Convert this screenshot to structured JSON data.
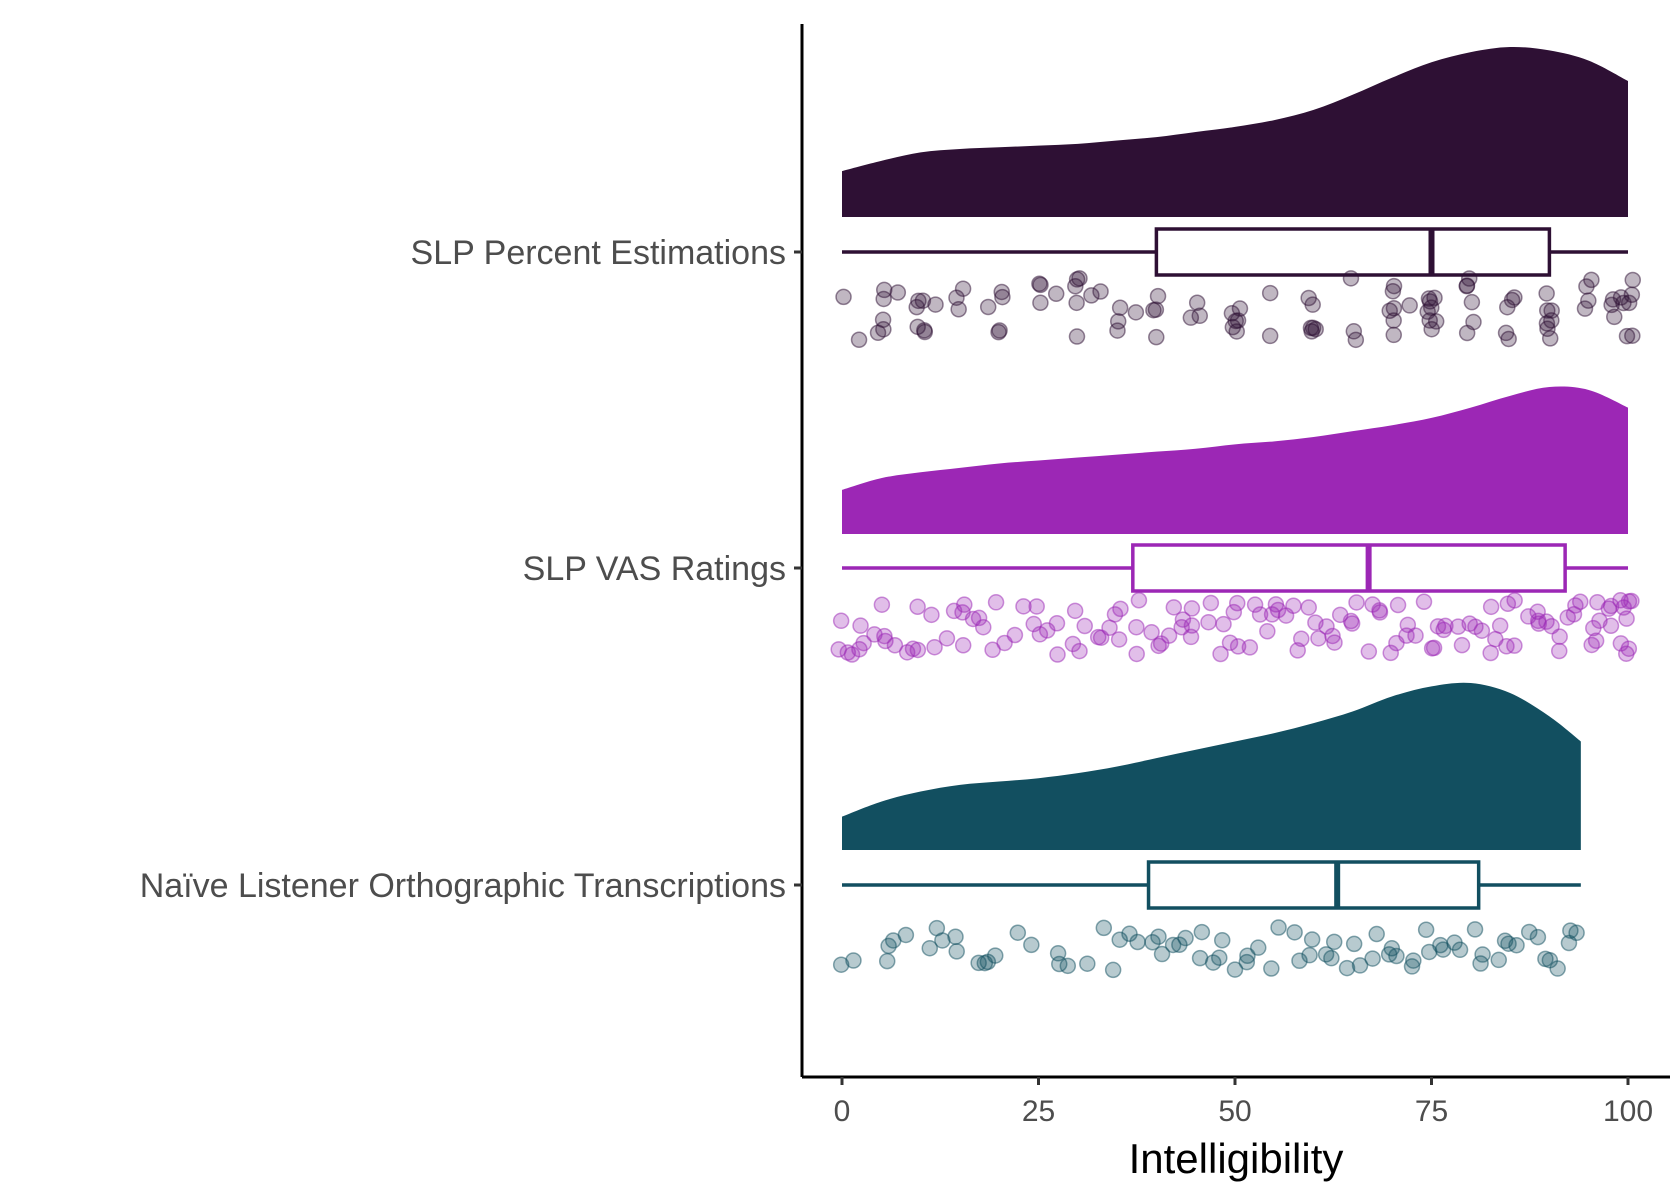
{
  "chart_data": {
    "type": "raincloud",
    "title": "",
    "xlabel": "Intelligibility",
    "ylabel": "",
    "xlim": [
      -5,
      105
    ],
    "x_ticks": [
      0,
      25,
      50,
      75,
      100
    ],
    "x_tick_labels": [
      "0",
      "25",
      "50",
      "75",
      "100"
    ],
    "grid": false,
    "legend": "none",
    "categories": [
      "SLP Percent Estimations",
      "SLP VAS Ratings",
      "Naïve Listener Orthographic Transcriptions"
    ],
    "series": [
      {
        "name": "SLP Percent Estimations",
        "color": "#2e1034",
        "box": {
          "min": 0,
          "q1": 40,
          "median": 75,
          "q3": 90,
          "max": 100
        },
        "density": {
          "x": [
            0,
            5,
            10,
            15,
            20,
            25,
            30,
            35,
            40,
            45,
            50,
            55,
            60,
            65,
            70,
            75,
            80,
            85,
            90,
            95,
            100
          ],
          "y": [
            0.27,
            0.33,
            0.38,
            0.4,
            0.41,
            0.42,
            0.43,
            0.45,
            0.47,
            0.5,
            0.53,
            0.57,
            0.63,
            0.72,
            0.82,
            0.91,
            0.97,
            1.0,
            0.98,
            0.92,
            0.8
          ]
        },
        "points": [
          0,
          2,
          5,
          5,
          5,
          5,
          5,
          7,
          10,
          10,
          10,
          10,
          10,
          10,
          12,
          15,
          15,
          15,
          18,
          20,
          20,
          20,
          20,
          25,
          25,
          25,
          27,
          30,
          30,
          30,
          30,
          30,
          32,
          33,
          35,
          35,
          35,
          38,
          40,
          40,
          40,
          40,
          45,
          45,
          45,
          50,
          50,
          50,
          50,
          50,
          50,
          55,
          55,
          60,
          60,
          60,
          60,
          60,
          60,
          65,
          65,
          65,
          70,
          70,
          70,
          70,
          70,
          70,
          72,
          75,
          75,
          75,
          75,
          75,
          75,
          75,
          75,
          80,
          80,
          80,
          80,
          80,
          80,
          85,
          85,
          85,
          85,
          85,
          90,
          90,
          90,
          90,
          90,
          90,
          90,
          95,
          95,
          95,
          95,
          98,
          98,
          98,
          99,
          100,
          100,
          100,
          100,
          100,
          100
        ]
      },
      {
        "name": "SLP VAS Ratings",
        "color": "#9c27b5",
        "box": {
          "min": 0,
          "q1": 37,
          "median": 67,
          "q3": 92,
          "max": 100
        },
        "density": {
          "x": [
            0,
            5,
            10,
            15,
            20,
            25,
            30,
            35,
            40,
            45,
            50,
            55,
            60,
            65,
            70,
            75,
            80,
            85,
            90,
            95,
            100
          ],
          "y": [
            0.3,
            0.38,
            0.42,
            0.45,
            0.48,
            0.5,
            0.52,
            0.54,
            0.56,
            0.58,
            0.61,
            0.63,
            0.66,
            0.7,
            0.74,
            0.79,
            0.86,
            0.94,
            1.0,
            0.98,
            0.86
          ]
        },
        "points": [
          0,
          0,
          1,
          1,
          2,
          2,
          3,
          4,
          5,
          5,
          6,
          7,
          8,
          9,
          10,
          10,
          11,
          12,
          13,
          14,
          15,
          15,
          16,
          17,
          18,
          18,
          19,
          20,
          21,
          22,
          23,
          24,
          25,
          25,
          26,
          27,
          28,
          29,
          30,
          30,
          31,
          32,
          33,
          34,
          35,
          35,
          36,
          37,
          38,
          38,
          39,
          40,
          40,
          41,
          42,
          43,
          43,
          44,
          45,
          45,
          46,
          47,
          48,
          48,
          49,
          50,
          50,
          51,
          52,
          53,
          53,
          54,
          55,
          55,
          56,
          57,
          57,
          58,
          59,
          60,
          60,
          61,
          62,
          62,
          63,
          64,
          65,
          65,
          66,
          67,
          67,
          68,
          69,
          70,
          70,
          71,
          72,
          72,
          73,
          74,
          75,
          75,
          76,
          77,
          77,
          78,
          79,
          80,
          80,
          81,
          82,
          82,
          83,
          84,
          85,
          85,
          86,
          86,
          87,
          88,
          88,
          89,
          90,
          90,
          91,
          91,
          92,
          93,
          93,
          94,
          95,
          95,
          96,
          96,
          97,
          97,
          98,
          98,
          99,
          99,
          100,
          100,
          100,
          100,
          100,
          100
        ]
      },
      {
        "name": "Naïve Listener Orthographic Transcriptions",
        "color": "#124f60",
        "box": {
          "min": 0,
          "q1": 39,
          "median": 63,
          "q3": 81,
          "max": 94
        },
        "density": {
          "x": [
            0,
            5,
            10,
            15,
            20,
            25,
            30,
            35,
            40,
            45,
            50,
            55,
            60,
            65,
            70,
            75,
            80,
            85,
            90,
            94
          ],
          "y": [
            0.2,
            0.29,
            0.35,
            0.39,
            0.41,
            0.43,
            0.46,
            0.5,
            0.55,
            0.6,
            0.65,
            0.7,
            0.76,
            0.83,
            0.92,
            0.98,
            1.0,
            0.94,
            0.8,
            0.65
          ]
        },
        "points": [
          0,
          2,
          6,
          6,
          6,
          8,
          11,
          12,
          13,
          14,
          15,
          17,
          18,
          19,
          20,
          22,
          24,
          27,
          28,
          29,
          31,
          33,
          34,
          35,
          37,
          38,
          39,
          40,
          41,
          42,
          43,
          44,
          45,
          46,
          47,
          48,
          49,
          50,
          51,
          52,
          53,
          54,
          55,
          57,
          58,
          59,
          60,
          61,
          62,
          63,
          64,
          65,
          66,
          67,
          68,
          69,
          70,
          71,
          72,
          73,
          74,
          75,
          76,
          77,
          78,
          79,
          80,
          81,
          82,
          83,
          84,
          85,
          86,
          87,
          88,
          89,
          90,
          91,
          92,
          93,
          94
        ]
      }
    ]
  }
}
